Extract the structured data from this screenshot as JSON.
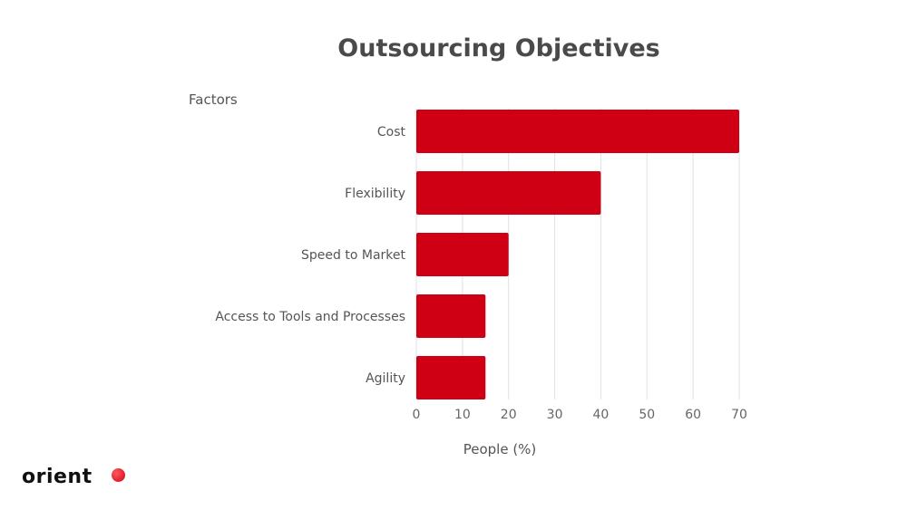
{
  "chart_data": {
    "type": "bar",
    "orientation": "horizontal",
    "title": "Outsourcing Objectives",
    "ylabel": "Factors",
    "xlabel": "People (%)",
    "categories": [
      "Cost",
      "Flexibility",
      "Speed to Market",
      "Access to Tools and Processes",
      "Agility"
    ],
    "values": [
      70,
      40,
      20,
      15,
      15
    ],
    "xlim": [
      0,
      70
    ],
    "xticks": [
      0,
      10,
      20,
      30,
      40,
      50,
      60,
      70
    ],
    "grid": "vertical",
    "bar_color": "#d00014"
  },
  "logo": {
    "text": "orient"
  }
}
